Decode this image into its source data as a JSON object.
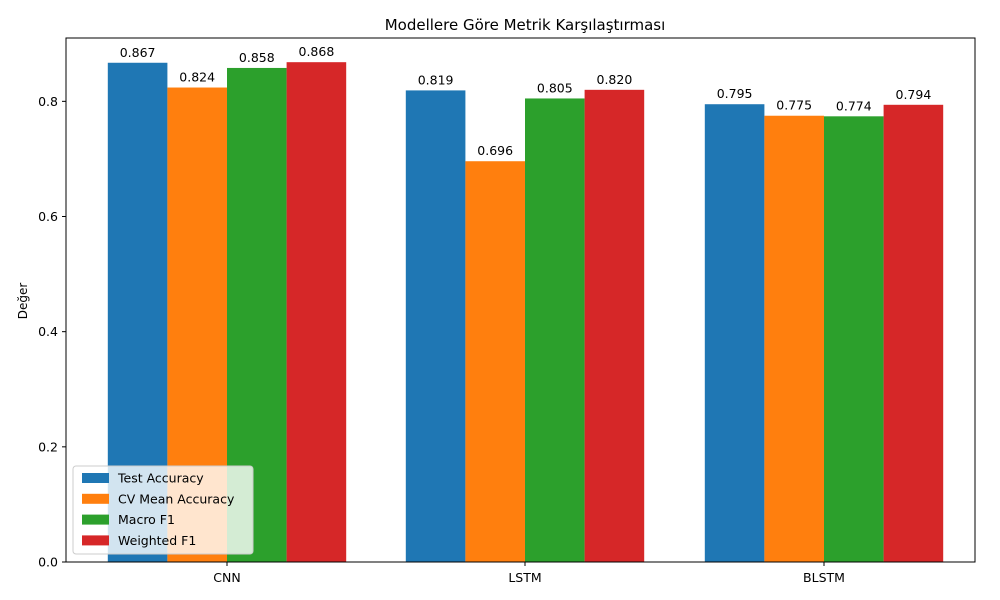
{
  "chart_data": {
    "type": "bar",
    "title": "Modellere Göre Metrik Karşılaştırması",
    "xlabel": "",
    "ylabel": "Değer",
    "categories": [
      "CNN",
      "LSTM",
      "BLSTM"
    ],
    "ylim": [
      0,
      0.91
    ],
    "yticks": [
      0.0,
      0.2,
      0.4,
      0.6,
      0.8
    ],
    "ytick_labels": [
      "0.0",
      "0.2",
      "0.4",
      "0.6",
      "0.8"
    ],
    "grid": false,
    "legend_position": "lower-left",
    "series": [
      {
        "name": "Test Accuracy",
        "color": "#1f77b4",
        "values": [
          0.867,
          0.819,
          0.795
        ],
        "labels": [
          "0.867",
          "0.819",
          "0.795"
        ]
      },
      {
        "name": "CV Mean Accuracy",
        "color": "#ff7f0e",
        "values": [
          0.824,
          0.696,
          0.775
        ],
        "labels": [
          "0.824",
          "0.696",
          "0.775"
        ]
      },
      {
        "name": "Macro F1",
        "color": "#2ca02c",
        "values": [
          0.858,
          0.805,
          0.774
        ],
        "labels": [
          "0.858",
          "0.805",
          "0.774"
        ]
      },
      {
        "name": "Weighted F1",
        "color": "#d62728",
        "values": [
          0.868,
          0.82,
          0.794
        ],
        "labels": [
          "0.868",
          "0.820",
          "0.794"
        ]
      }
    ]
  }
}
